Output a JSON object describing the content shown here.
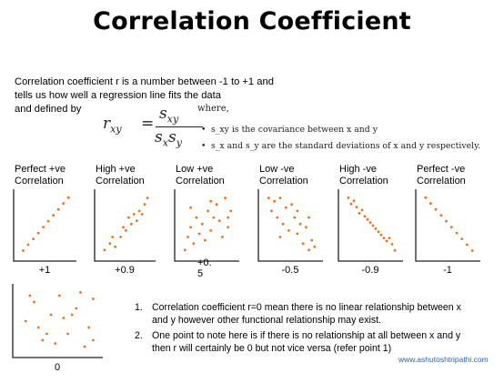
{
  "title": "Correlation Coefficient",
  "intro": {
    "line1": "Correlation coefficient r is a number between -1 to +1 and",
    "line2": "tells us how well a regression line fits the data",
    "line3": "and defined by"
  },
  "formula": {
    "lhs": "r",
    "lhs_sub": "xy",
    "numerator": "s",
    "numerator_sub": "xy",
    "denominator_1": "s",
    "denominator_1_sub": "x",
    "denominator_2": "s",
    "denominator_2_sub": "y",
    "where": "where,",
    "bullet1": "s_xy is the covariance between x and y",
    "bullet2": "s_x and s_y are the standard deviations of x and y respectively."
  },
  "colors": {
    "dot": "#e8731c",
    "axis": "#222222",
    "url": "#2b5fb4"
  },
  "chart_data": [
    {
      "type": "scatter",
      "label": "Perfect +ve Correlation",
      "value_label": "+1",
      "x": [
        1,
        2,
        3,
        4,
        5,
        6,
        7,
        8,
        9,
        10
      ],
      "y": [
        1,
        2,
        3,
        4,
        5,
        6,
        7,
        8,
        9,
        10
      ]
    },
    {
      "type": "scatter",
      "label": "High +ve Correlation",
      "value_label": "+0.9",
      "x": [
        1,
        2,
        2.5,
        3,
        4,
        4.5,
        5,
        5.5,
        6,
        6.5,
        7,
        7.5,
        8,
        8.5,
        9
      ],
      "y": [
        1,
        2,
        3,
        1.5,
        3,
        4.5,
        4,
        6,
        5,
        6.5,
        5.5,
        7,
        6.5,
        8,
        9
      ]
    },
    {
      "type": "scatter",
      "label": "Low +ve Correlation",
      "value_label": "+0.5",
      "x": [
        1,
        1.5,
        2,
        2.5,
        3,
        3.5,
        4,
        4.5,
        5,
        5.5,
        6,
        6.5,
        7,
        7.5,
        8,
        8.5,
        9,
        2,
        5.5,
        8.5
      ],
      "y": [
        1,
        3,
        4.5,
        2,
        6,
        3.5,
        5,
        2.5,
        7,
        4,
        6,
        8,
        5.5,
        3,
        9,
        6,
        7,
        7.5,
        8.5,
        4.5
      ]
    },
    {
      "type": "scatter",
      "label": "Low -ve Correlation",
      "value_label": "-0.5",
      "x": [
        1,
        1.5,
        2,
        2.5,
        3,
        3.5,
        4,
        4.5,
        5,
        5.5,
        6,
        6.5,
        7,
        7.5,
        8,
        8.5,
        9,
        3,
        6,
        8
      ],
      "y": [
        9,
        7,
        8.5,
        6,
        9,
        5,
        7.5,
        4,
        8,
        6,
        3.5,
        5,
        2,
        4.5,
        6,
        2.5,
        1.5,
        3,
        7,
        1
      ]
    },
    {
      "type": "scatter",
      "label": "High -ve Correlation",
      "value_label": "-0.9",
      "x": [
        1,
        1.5,
        2,
        2.5,
        3,
        3.5,
        4,
        4.5,
        5,
        5.5,
        6,
        6.5,
        7,
        7.5,
        8,
        8.5,
        9,
        9.5
      ],
      "y": [
        9.5,
        8.5,
        9,
        8,
        7,
        7.5,
        6.5,
        6,
        5.5,
        5,
        4.5,
        4,
        3.5,
        3,
        2.5,
        3,
        2,
        1
      ]
    },
    {
      "type": "scatter",
      "label": "Perfect -ve Correlation",
      "value_label": "-1",
      "x": [
        1,
        2,
        3,
        4,
        5,
        6,
        7,
        8,
        9,
        10
      ],
      "y": [
        10,
        9,
        8,
        7,
        6,
        5,
        4,
        3,
        2,
        1
      ]
    },
    {
      "type": "scatter",
      "label": "",
      "value_label": "0",
      "x": [
        1,
        2,
        3,
        4,
        5,
        6,
        7,
        8,
        9,
        2.5,
        4.5,
        6.5,
        8.5,
        1.5,
        5.5,
        7.5,
        3.5,
        9
      ],
      "y": [
        5,
        8,
        2,
        6,
        9,
        3,
        7,
        1,
        8.5,
        4,
        1.5,
        6,
        4,
        9,
        5.5,
        9.5,
        3,
        2
      ]
    }
  ],
  "notes": [
    {
      "num": "1.",
      "line1": "Correlation coefficient r=0 mean there is no linear relationship between x",
      "line2": "and y however other functional relationship may exist."
    },
    {
      "num": "2.",
      "line1": "One point to note here is if there is no relationship at all between x and y",
      "line2": "then r will certainly be 0 but not vice versa (refer point 1)"
    }
  ],
  "source_url": "www.ashutoshtripathi.com"
}
